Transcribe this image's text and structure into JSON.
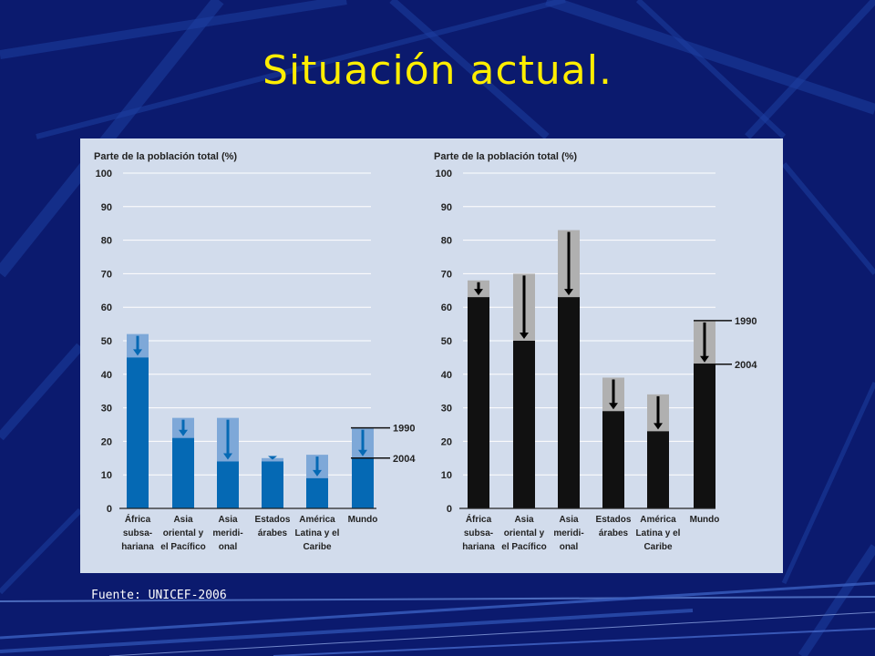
{
  "slide": {
    "title": "Situación actual.",
    "source": "Fuente: UNICEF-2006"
  },
  "colors": {
    "background": "#0b1a6e",
    "title": "#ffee00",
    "panel": "#d2dcec",
    "blue_2004": "#0569b4",
    "blue_1990": "#7ea8d8",
    "black_2004": "#111111",
    "gray_1990": "#b0b0b0"
  },
  "chart_data": [
    {
      "type": "bar",
      "ylabel": "Parte de la población total (%)",
      "ylim": [
        0,
        100
      ],
      "yticks": [
        0,
        10,
        20,
        30,
        40,
        50,
        60,
        70,
        80,
        90,
        100
      ],
      "grid": true,
      "categories": [
        [
          "África",
          "subsa-",
          "hariana"
        ],
        [
          "Asia",
          "oriental y",
          "el Pacífico"
        ],
        [
          "Asia",
          "meridi-",
          "onal"
        ],
        [
          "Estados",
          "árabes"
        ],
        [
          "América",
          "Latina y el",
          "Caribe"
        ],
        [
          "Mundo"
        ]
      ],
      "series": [
        {
          "name": "1990",
          "values": [
            52,
            27,
            27,
            15,
            16,
            24
          ]
        },
        {
          "name": "2004",
          "values": [
            45,
            21,
            14,
            14,
            9,
            15
          ]
        }
      ],
      "legend_labels": [
        "1990",
        "2004"
      ]
    },
    {
      "type": "bar",
      "ylabel": "Parte de la población total (%)",
      "ylim": [
        0,
        100
      ],
      "yticks": [
        0,
        10,
        20,
        30,
        40,
        50,
        60,
        70,
        80,
        90,
        100
      ],
      "grid": true,
      "categories": [
        [
          "África",
          "subsa-",
          "hariana"
        ],
        [
          "Asia",
          "oriental y",
          "el Pacífico"
        ],
        [
          "Asia",
          "meridi-",
          "onal"
        ],
        [
          "Estados",
          "árabes"
        ],
        [
          "América",
          "Latina y el",
          "Caribe"
        ],
        [
          "Mundo"
        ]
      ],
      "series": [
        {
          "name": "1990",
          "values": [
            68,
            70,
            83,
            39,
            34,
            56
          ]
        },
        {
          "name": "2004",
          "values": [
            63,
            50,
            63,
            29,
            23,
            43
          ]
        }
      ],
      "legend_labels": [
        "1990",
        "2004"
      ]
    }
  ]
}
